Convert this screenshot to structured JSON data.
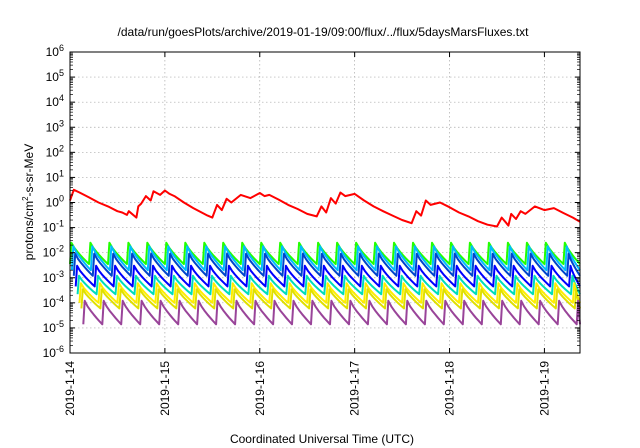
{
  "chart_data": {
    "type": "line",
    "title": "/data/run/goesPlots/archive/2019-01-19/09:00/flux/../flux/5daysMarsFluxes.txt",
    "xlabel": "Coordinated Universal Time (UTC)",
    "ylabel_parts": {
      "base": "protons/cm",
      "sup": "2",
      "rest": "-s-sr-MeV"
    },
    "yscale": "log",
    "ylim_exp": [
      -6,
      6
    ],
    "ytick_base": "10",
    "yticks_exp": [
      "-6",
      "-5",
      "-4",
      "-3",
      "-2",
      "-1",
      "0",
      "1",
      "2",
      "3",
      "4",
      "5",
      "6"
    ],
    "xlim": [
      "2019-01-14",
      "2019-01-19T09:00"
    ],
    "xticks": [
      "2019-1-14",
      "2019-1-15",
      "2019-1-16",
      "2019-1-17",
      "2019-1-18",
      "2019-1-19"
    ],
    "grid": true,
    "series": [
      {
        "color": "#ff0000",
        "t_days": [
          0.0,
          0.04,
          0.1,
          0.2,
          0.3,
          0.4,
          0.5,
          0.55,
          0.6,
          0.62,
          0.7,
          0.72,
          0.75,
          0.8,
          0.85,
          0.88,
          0.95,
          1.0,
          1.05,
          1.1,
          1.2,
          1.3,
          1.45,
          1.5,
          1.55,
          1.6,
          1.65,
          1.7,
          1.8,
          1.9,
          2.0,
          2.05,
          2.1,
          2.2,
          2.3,
          2.4,
          2.5,
          2.6,
          2.65,
          2.7,
          2.75,
          2.8,
          2.85,
          2.9,
          3.0,
          3.1,
          3.2,
          3.3,
          3.4,
          3.5,
          3.6,
          3.65,
          3.7,
          3.75,
          3.8,
          3.9,
          4.0,
          4.1,
          4.2,
          4.3,
          4.4,
          4.5,
          4.55,
          4.6,
          4.62,
          4.65,
          4.7,
          4.75,
          4.8,
          4.9,
          5.0,
          5.1,
          5.2,
          5.3,
          5.375
        ],
        "values": [
          1.2,
          3.2,
          2.5,
          1.6,
          1.0,
          0.7,
          0.45,
          0.4,
          0.32,
          0.45,
          0.25,
          0.7,
          0.9,
          1.8,
          1.2,
          2.8,
          2.0,
          3.0,
          2.2,
          1.8,
          1.0,
          0.6,
          0.3,
          0.25,
          0.8,
          0.5,
          1.4,
          1.0,
          2.0,
          1.5,
          2.4,
          1.8,
          2.0,
          1.3,
          0.8,
          0.55,
          0.35,
          0.28,
          0.7,
          0.4,
          1.5,
          0.9,
          2.5,
          1.8,
          2.2,
          1.2,
          0.7,
          0.45,
          0.3,
          0.2,
          0.15,
          0.45,
          0.3,
          1.2,
          0.8,
          1.0,
          0.65,
          0.4,
          0.28,
          0.18,
          0.13,
          0.11,
          0.25,
          0.15,
          0.12,
          0.35,
          0.22,
          0.45,
          0.35,
          0.7,
          0.5,
          0.6,
          0.38,
          0.25,
          0.17
        ]
      },
      {
        "color": "#22ff00",
        "peak": 0.025,
        "floor": 0.0035,
        "phase": 0.0
      },
      {
        "color": "#00bbff",
        "peak": 0.018,
        "floor": 0.002,
        "phase": 0.02
      },
      {
        "color": "#0044cc",
        "peak": 0.009,
        "floor": 0.0012,
        "phase": 0.04
      },
      {
        "color": "#0000ff",
        "peak": 0.003,
        "floor": 0.00045,
        "phase": 0.06
      },
      {
        "color": "#00ddbb",
        "peak": 0.0012,
        "floor": 0.00022,
        "phase": 0.08
      },
      {
        "color": "#ffee00",
        "peak": 0.0006,
        "floor": 0.0001,
        "phase": 0.1
      },
      {
        "color": "#e0e000",
        "peak": 0.00035,
        "floor": 6e-05,
        "phase": 0.12
      },
      {
        "color": "#994499",
        "peak": 0.00012,
        "floor": 1.4e-05,
        "phase": 0.14
      }
    ],
    "sawtooth_period_days": 0.2
  }
}
